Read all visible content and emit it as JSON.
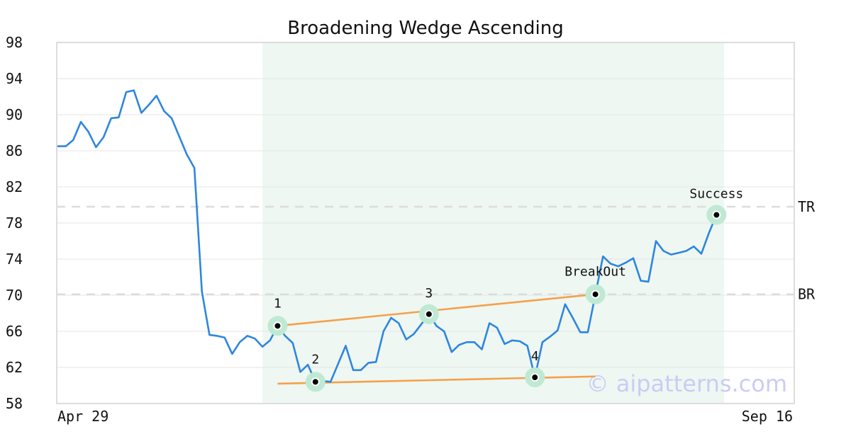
{
  "chart_data": {
    "type": "line",
    "title": "Broadening Wedge Ascending",
    "xlabel": "",
    "ylabel": "",
    "ylim": [
      58,
      98
    ],
    "yticks": [
      "98",
      "94",
      "90",
      "86",
      "82",
      "78",
      "74",
      "70",
      "66",
      "62",
      "58"
    ],
    "xticks": [
      "Apr 29",
      "Sep 16"
    ],
    "grid": true,
    "colors": {
      "price": "#2e86de",
      "trendline": "#f5a04a",
      "highlight": "#eef7f2",
      "marker_halo": "#bfe9d3",
      "reference": "#dcdcdc",
      "watermark": "#c9cdf5"
    },
    "series": [
      {
        "values": [
          86.5,
          86.5,
          87.2,
          89.2,
          88.1,
          86.4,
          87.5,
          89.6,
          89.7,
          92.5,
          92.7,
          90.2,
          91.1,
          92.1,
          90.4,
          89.6,
          87.6,
          85.6,
          84.1,
          70.4,
          65.6,
          65.5,
          65.3,
          63.5,
          64.8,
          65.5,
          65.2,
          64.3,
          65.0,
          66.6,
          65.5,
          64.7,
          61.5,
          62.3,
          60.4,
          60.5,
          60.4,
          62.4,
          64.4,
          61.7,
          61.7,
          62.5,
          62.6,
          66.0,
          67.5,
          66.9,
          65.1,
          65.7,
          66.8,
          67.9,
          66.6,
          66.0,
          63.7,
          64.5,
          64.8,
          64.8,
          64.0,
          66.9,
          66.4,
          64.6,
          65.0,
          64.9,
          64.4,
          60.9,
          64.8,
          65.4,
          66.1,
          69.0,
          67.5,
          65.9,
          65.9,
          70.1,
          74.3,
          73.5,
          73.2,
          73.6,
          74.1,
          71.6,
          71.5,
          76.0,
          74.9,
          74.5,
          74.7,
          74.9,
          75.4,
          74.6,
          76.9,
          78.9,
          78.5
        ]
      }
    ],
    "reference_lines": [
      {
        "label": "TR",
        "value": 79.8
      },
      {
        "label": "BR",
        "value": 70.1
      }
    ],
    "trendlines": [
      {
        "from": [
          29,
          66.6
        ],
        "to": [
          71,
          70.1
        ]
      },
      {
        "from": [
          29,
          60.2
        ],
        "to": [
          71,
          61.0
        ]
      }
    ],
    "highlight_range": [
      27,
      88
    ],
    "points": [
      {
        "label": "1",
        "index": 29,
        "value": 66.6
      },
      {
        "label": "2",
        "index": 34,
        "value": 60.4
      },
      {
        "label": "3",
        "index": 49,
        "value": 67.9
      },
      {
        "label": "4",
        "index": 63,
        "value": 60.9
      },
      {
        "label": "BreakOut",
        "index": 71,
        "value": 70.1
      },
      {
        "label": "Success",
        "index": 87,
        "value": 78.9
      }
    ],
    "watermark": "© aipatterns.com"
  }
}
